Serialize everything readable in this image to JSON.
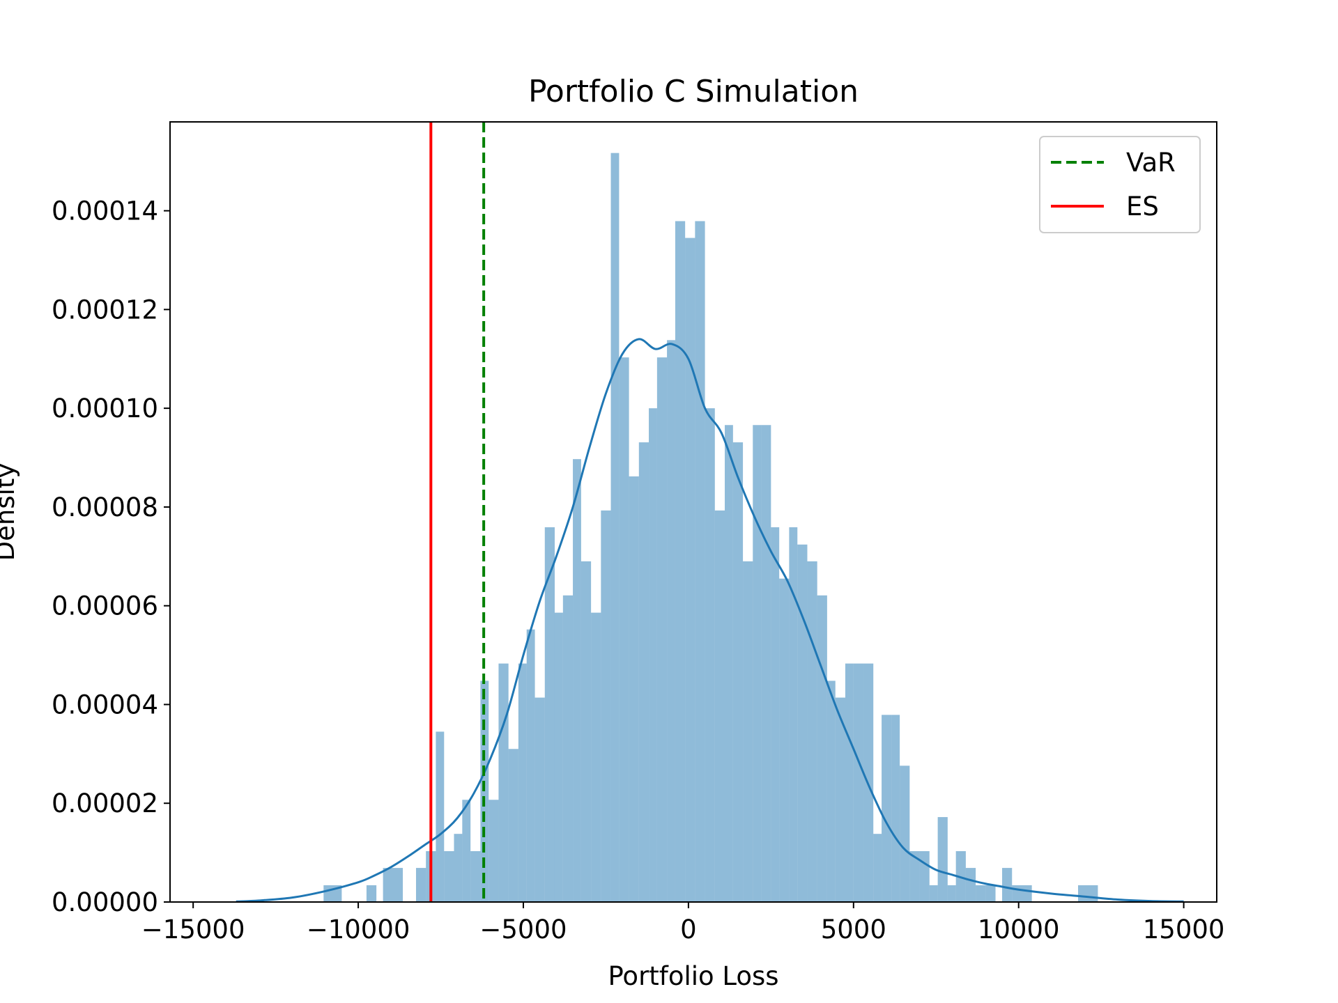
{
  "chart_data": {
    "type": "histogram",
    "title": "Portfolio C Simulation",
    "xlabel": "Portfolio Loss",
    "ylabel": "Density",
    "xlim": [
      -15700,
      16000
    ],
    "ylim": [
      0,
      0.000158
    ],
    "x_ticks": [
      -15000,
      -10000,
      -5000,
      0,
      5000,
      10000,
      15000
    ],
    "x_tick_labels": [
      "−15000",
      "−10000",
      "−5000",
      "0",
      "5000",
      "10000",
      "15000"
    ],
    "y_ticks": [
      0,
      2e-05,
      4e-05,
      6e-05,
      8e-05,
      0.0001,
      0.00012,
      0.00014
    ],
    "y_tick_labels": [
      "0.00000",
      "0.00002",
      "0.00004",
      "0.00006",
      "0.00008",
      "0.00010",
      "0.00012",
      "0.00014"
    ],
    "grid": false,
    "legend_position": "top-right",
    "histogram": {
      "color": "#1f77b4",
      "opacity": 0.5,
      "bins": [
        {
          "x0": -11050,
          "x1": -10500,
          "density": 3.4e-06
        },
        {
          "x0": -9750,
          "x1": -9450,
          "density": 3.4e-06
        },
        {
          "x0": -9250,
          "x1": -8650,
          "density": 6.9e-06
        },
        {
          "x0": -8250,
          "x1": -7950,
          "density": 6.9e-06
        },
        {
          "x0": -7950,
          "x1": -7650,
          "density": 1.03e-05
        },
        {
          "x0": -7650,
          "x1": -7400,
          "density": 3.45e-05
        },
        {
          "x0": -7400,
          "x1": -7100,
          "density": 1.03e-05
        },
        {
          "x0": -7100,
          "x1": -6850,
          "density": 1.38e-05
        },
        {
          "x0": -6850,
          "x1": -6600,
          "density": 2.07e-05
        },
        {
          "x0": -6600,
          "x1": -6300,
          "density": 1.03e-05
        },
        {
          "x0": -6300,
          "x1": -6050,
          "density": 4.48e-05
        },
        {
          "x0": -6050,
          "x1": -5750,
          "density": 2.07e-05
        },
        {
          "x0": -5750,
          "x1": -5450,
          "density": 4.83e-05
        },
        {
          "x0": -5450,
          "x1": -5150,
          "density": 3.1e-05
        },
        {
          "x0": -5150,
          "x1": -4900,
          "density": 4.83e-05
        },
        {
          "x0": -4900,
          "x1": -4650,
          "density": 5.52e-05
        },
        {
          "x0": -4650,
          "x1": -4350,
          "density": 4.14e-05
        },
        {
          "x0": -4350,
          "x1": -4050,
          "density": 7.59e-05
        },
        {
          "x0": -4050,
          "x1": -3800,
          "density": 5.86e-05
        },
        {
          "x0": -3800,
          "x1": -3500,
          "density": 6.21e-05
        },
        {
          "x0": -3500,
          "x1": -3250,
          "density": 8.97e-05
        },
        {
          "x0": -3250,
          "x1": -2950,
          "density": 6.9e-05
        },
        {
          "x0": -2950,
          "x1": -2650,
          "density": 5.86e-05
        },
        {
          "x0": -2650,
          "x1": -2350,
          "density": 7.93e-05
        },
        {
          "x0": -2350,
          "x1": -2100,
          "density": 0.0001517
        },
        {
          "x0": -2100,
          "x1": -1800,
          "density": 0.0001103
        },
        {
          "x0": -1800,
          "x1": -1500,
          "density": 8.62e-05
        },
        {
          "x0": -1500,
          "x1": -1200,
          "density": 9.31e-05
        },
        {
          "x0": -1200,
          "x1": -950,
          "density": 0.0001
        },
        {
          "x0": -950,
          "x1": -650,
          "density": 0.0001103
        },
        {
          "x0": -650,
          "x1": -400,
          "density": 0.0001138
        },
        {
          "x0": -400,
          "x1": -100,
          "density": 0.0001379
        },
        {
          "x0": -100,
          "x1": 200,
          "density": 0.0001345
        },
        {
          "x0": 200,
          "x1": 500,
          "density": 0.0001379
        },
        {
          "x0": 500,
          "x1": 800,
          "density": 0.0001
        },
        {
          "x0": 800,
          "x1": 1100,
          "density": 7.93e-05
        },
        {
          "x0": 1100,
          "x1": 1350,
          "density": 9.66e-05
        },
        {
          "x0": 1350,
          "x1": 1650,
          "density": 9.31e-05
        },
        {
          "x0": 1650,
          "x1": 1950,
          "density": 6.9e-05
        },
        {
          "x0": 1950,
          "x1": 2200,
          "density": 9.66e-05
        },
        {
          "x0": 2200,
          "x1": 2500,
          "density": 9.66e-05
        },
        {
          "x0": 2500,
          "x1": 2750,
          "density": 7.59e-05
        },
        {
          "x0": 2750,
          "x1": 3050,
          "density": 6.55e-05
        },
        {
          "x0": 3050,
          "x1": 3300,
          "density": 7.59e-05
        },
        {
          "x0": 3300,
          "x1": 3600,
          "density": 7.24e-05
        },
        {
          "x0": 3600,
          "x1": 3900,
          "density": 6.9e-05
        },
        {
          "x0": 3900,
          "x1": 4200,
          "density": 6.21e-05
        },
        {
          "x0": 4200,
          "x1": 4450,
          "density": 4.48e-05
        },
        {
          "x0": 4450,
          "x1": 4750,
          "density": 4.14e-05
        },
        {
          "x0": 4750,
          "x1": 5000,
          "density": 4.83e-05
        },
        {
          "x0": 5000,
          "x1": 5300,
          "density": 4.83e-05
        },
        {
          "x0": 5300,
          "x1": 5600,
          "density": 4.83e-05
        },
        {
          "x0": 5600,
          "x1": 5850,
          "density": 1.38e-05
        },
        {
          "x0": 5850,
          "x1": 6150,
          "density": 3.79e-05
        },
        {
          "x0": 6150,
          "x1": 6400,
          "density": 3.79e-05
        },
        {
          "x0": 6400,
          "x1": 6700,
          "density": 2.76e-05
        },
        {
          "x0": 6700,
          "x1": 7000,
          "density": 1.03e-05
        },
        {
          "x0": 7000,
          "x1": 7300,
          "density": 1.03e-05
        },
        {
          "x0": 7300,
          "x1": 7550,
          "density": 3.4e-06
        },
        {
          "x0": 7550,
          "x1": 7850,
          "density": 1.72e-05
        },
        {
          "x0": 7850,
          "x1": 8100,
          "density": 3.4e-06
        },
        {
          "x0": 8100,
          "x1": 8400,
          "density": 1.03e-05
        },
        {
          "x0": 8400,
          "x1": 8700,
          "density": 6.9e-06
        },
        {
          "x0": 8700,
          "x1": 9000,
          "density": 3.4e-06
        },
        {
          "x0": 9000,
          "x1": 9300,
          "density": 3.4e-06
        },
        {
          "x0": 9500,
          "x1": 9800,
          "density": 6.9e-06
        },
        {
          "x0": 9800,
          "x1": 10100,
          "density": 3.4e-06
        },
        {
          "x0": 10100,
          "x1": 10400,
          "density": 3.4e-06
        },
        {
          "x0": 11800,
          "x1": 12400,
          "density": 3.4e-06
        }
      ]
    },
    "kde": {
      "color": "#1f77b4",
      "x": [
        -13700,
        -13000,
        -12000,
        -11000,
        -10000,
        -9500,
        -9000,
        -8500,
        -8000,
        -7500,
        -7000,
        -6500,
        -6000,
        -5500,
        -5000,
        -4500,
        -4000,
        -3500,
        -3000,
        -2500,
        -2000,
        -1500,
        -1000,
        -500,
        0,
        500,
        1000,
        1500,
        2000,
        2500,
        3000,
        3500,
        4000,
        4500,
        5000,
        5500,
        6000,
        6500,
        7000,
        7500,
        8000,
        8500,
        9000,
        9500,
        10000,
        11000,
        12000,
        13000,
        14000,
        15000
      ],
      "y": [
        1e-07,
        3e-07,
        9e-07,
        2.2e-06,
        4e-06,
        5.4e-06,
        7.1e-06,
        9.2e-06,
        1.15e-05,
        1.38e-05,
        1.7e-05,
        2.2e-05,
        2.9e-05,
        3.8e-05,
        5e-05,
        6.1e-05,
        7e-05,
        8e-05,
        9.2e-05,
        0.000103,
        0.000111,
        0.000114,
        0.000112,
        0.000113,
        0.00011,
        0.0001,
        9.5e-05,
        8.6e-05,
        7.8e-05,
        7.1e-05,
        6.5e-05,
        5.7e-05,
        4.8e-05,
        3.9e-05,
        3.1e-05,
        2.3e-05,
        1.6e-05,
        1.1e-05,
        8.5e-06,
        6.5e-06,
        5.5e-06,
        4.5e-06,
        3.7e-06,
        3.1e-06,
        2.5e-06,
        1.7e-06,
        1.1e-06,
        5e-07,
        2e-07,
        1e-07
      ]
    },
    "lines": [
      {
        "name": "VaR",
        "x": -6200,
        "color": "#008000",
        "style": "dashed"
      },
      {
        "name": "ES",
        "x": -7800,
        "color": "#ff0000",
        "style": "solid"
      }
    ],
    "legend": [
      {
        "label": "VaR",
        "color": "#008000",
        "style": "dashed"
      },
      {
        "label": "ES",
        "color": "#ff0000",
        "style": "solid"
      }
    ]
  }
}
